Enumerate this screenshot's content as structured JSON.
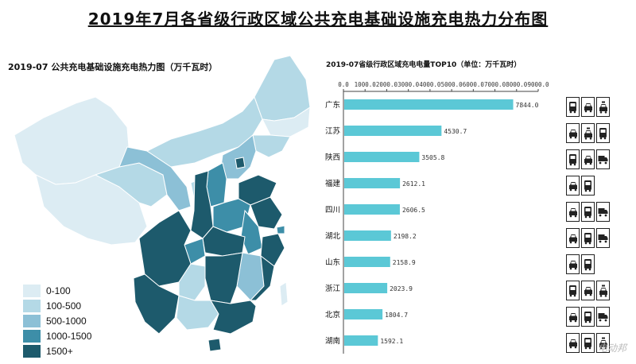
{
  "title": "2019年7月各省级行政区域公共充电基础设施充电热力分布图",
  "map": {
    "title": "2019-07 公共充电基础设施充电热力图（万千瓦时）",
    "legend": [
      {
        "label": "0-100",
        "color": "#dcecf3"
      },
      {
        "label": "100-500",
        "color": "#b4d9e6"
      },
      {
        "label": "500-1000",
        "color": "#8cc0d6"
      },
      {
        "label": "1000-1500",
        "color": "#3d8ea8"
      },
      {
        "label": "1500+",
        "color": "#1d5a6c"
      }
    ]
  },
  "chart_data": {
    "type": "bar",
    "orientation": "horizontal",
    "title": "2019-07省级行政区域充电电量TOP10（单位：万千瓦时）",
    "categories": [
      "广东",
      "江苏",
      "陕西",
      "福建",
      "四川",
      "湖北",
      "山东",
      "浙江",
      "北京",
      "湖南"
    ],
    "values": [
      7844.0,
      4530.7,
      3505.8,
      2612.1,
      2606.5,
      2198.2,
      2158.9,
      2023.9,
      1804.7,
      1592.1
    ],
    "value_labels": [
      "7844.0",
      "4530.7",
      "3505.8",
      "2612.1",
      "2606.5",
      "2198.2",
      "2158.9",
      "2023.9",
      "1804.7",
      "1592.1"
    ],
    "xlim": [
      0,
      9000
    ],
    "ticks": [
      "0.0",
      "1000.0",
      "2000.0",
      "3000.0",
      "4000.0",
      "5000.0",
      "6000.0",
      "7000.0",
      "8000.0",
      "9000.0"
    ],
    "bar_color": "#5bc8d6",
    "axis_position": "top",
    "grid": false
  },
  "icons": [
    [
      "bus-icon",
      "car-icon",
      "taxi-icon"
    ],
    [
      "car-icon",
      "taxi-icon",
      "bus-icon"
    ],
    [
      "bus-icon",
      "car-icon",
      "truck-icon"
    ],
    [
      "car-icon",
      "bus-icon"
    ],
    [
      "car-icon",
      "bus-icon",
      "truck-icon"
    ],
    [
      "car-icon",
      "bus-icon",
      "truck-icon"
    ],
    [
      "car-icon",
      "bus-icon"
    ],
    [
      "bus-icon",
      "car-icon",
      "taxi-icon"
    ],
    [
      "car-icon",
      "bus-icon",
      "truck-icon"
    ],
    [
      "car-icon",
      "bus-icon",
      "taxi-icon"
    ]
  ],
  "watermark": "电动邦"
}
